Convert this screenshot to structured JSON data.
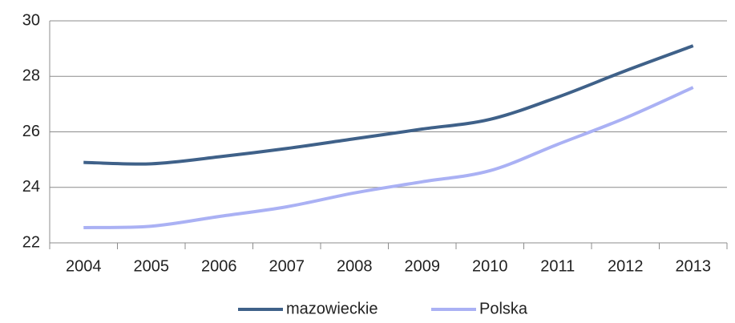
{
  "chart_data": {
    "type": "line",
    "categories": [
      "2004",
      "2005",
      "2006",
      "2007",
      "2008",
      "2009",
      "2010",
      "2011",
      "2012",
      "2013"
    ],
    "series": [
      {
        "name": "mazowieckie",
        "color": "#3f6189",
        "values": [
          24.9,
          24.85,
          25.1,
          25.4,
          25.75,
          26.1,
          26.45,
          27.25,
          28.2,
          29.1
        ]
      },
      {
        "name": "Polska",
        "color": "#aab1f4",
        "values": [
          22.55,
          22.6,
          22.95,
          23.3,
          23.8,
          24.2,
          24.6,
          25.55,
          26.5,
          27.6
        ]
      }
    ],
    "ylim": [
      22,
      30
    ],
    "yticks": [
      22,
      24,
      26,
      28,
      30
    ],
    "grid": true,
    "legend": "bottom"
  }
}
